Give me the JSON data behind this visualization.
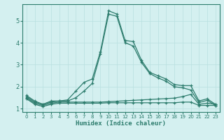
{
  "xlabel": "Humidex (Indice chaleur)",
  "x": [
    0,
    1,
    2,
    3,
    4,
    5,
    6,
    7,
    8,
    9,
    10,
    11,
    12,
    13,
    14,
    15,
    16,
    17,
    18,
    19,
    20,
    21,
    22,
    23
  ],
  "line1": [
    1.6,
    1.35,
    1.2,
    1.35,
    1.35,
    1.4,
    1.8,
    2.2,
    2.35,
    3.6,
    5.45,
    5.3,
    4.1,
    4.05,
    3.2,
    2.65,
    2.5,
    2.35,
    2.1,
    2.05,
    2.05,
    1.35,
    1.45,
    1.2
  ],
  "line2": [
    1.55,
    1.3,
    1.2,
    1.3,
    1.35,
    1.35,
    1.5,
    1.8,
    2.15,
    3.5,
    5.3,
    5.2,
    4.0,
    3.85,
    3.1,
    2.6,
    2.4,
    2.25,
    2.0,
    1.95,
    1.85,
    1.28,
    1.38,
    1.15
  ],
  "line3": [
    1.5,
    1.25,
    1.15,
    1.25,
    1.3,
    1.3,
    1.3,
    1.3,
    1.3,
    1.3,
    1.32,
    1.34,
    1.36,
    1.38,
    1.4,
    1.42,
    1.44,
    1.46,
    1.48,
    1.55,
    1.65,
    1.2,
    1.25,
    1.2
  ],
  "line4": [
    1.45,
    1.2,
    1.1,
    1.2,
    1.25,
    1.25,
    1.25,
    1.25,
    1.25,
    1.25,
    1.27,
    1.27,
    1.27,
    1.27,
    1.27,
    1.27,
    1.27,
    1.27,
    1.27,
    1.3,
    1.3,
    1.15,
    1.15,
    1.15
  ],
  "line_color": "#2e7d6e",
  "bg_color": "#d4f0f0",
  "grid_color": "#b8e0e0",
  "ylim": [
    0.85,
    5.75
  ],
  "xlim": [
    -0.5,
    23.5
  ],
  "yticks": [
    1,
    2,
    3,
    4,
    5
  ],
  "xticks": [
    0,
    1,
    2,
    3,
    4,
    5,
    6,
    7,
    8,
    9,
    10,
    11,
    12,
    13,
    14,
    15,
    16,
    17,
    18,
    19,
    20,
    21,
    22,
    23
  ]
}
